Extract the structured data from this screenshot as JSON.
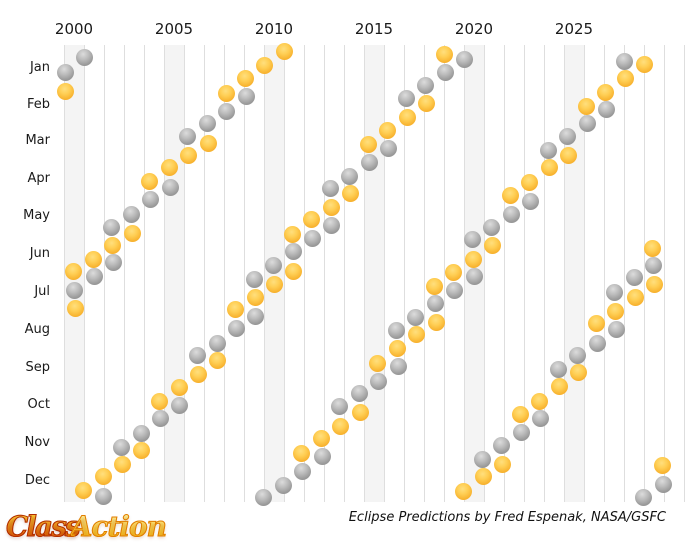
{
  "chart_data": {
    "type": "scatter",
    "title": "",
    "x_axis": {
      "label": "",
      "tick_labels": [
        "2000",
        "2005",
        "2010",
        "2015",
        "2020",
        "2025"
      ],
      "tick_years": [
        2000,
        2005,
        2010,
        2015,
        2020,
        2025
      ],
      "year_range": [
        2000,
        2031
      ],
      "gridline_step_years": 1,
      "highlighted_year_bands": [
        2000,
        2005,
        2010,
        2015,
        2020,
        2025
      ]
    },
    "y_axis": {
      "label": "",
      "tick_labels": [
        "Jan",
        "Feb",
        "Mar",
        "Apr",
        "May",
        "Jun",
        "Jul",
        "Aug",
        "Sep",
        "Oct",
        "Nov",
        "Dec"
      ]
    },
    "legend": {
      "visible": false
    },
    "grid": "vertical-only",
    "series": [
      {
        "name": "lunar-eclipse",
        "color": "#9a9a9a",
        "dates": [
          "2000-01-21",
          "2000-07-16",
          "2001-01-09",
          "2001-07-05",
          "2001-12-30",
          "2002-05-26",
          "2002-06-24",
          "2002-11-20",
          "2003-05-16",
          "2003-11-09",
          "2004-05-04",
          "2004-10-28",
          "2005-04-24",
          "2005-10-17",
          "2006-03-14",
          "2006-09-07",
          "2007-03-03",
          "2007-08-28",
          "2008-02-21",
          "2008-08-16",
          "2009-02-09",
          "2009-07-07",
          "2009-08-06",
          "2009-12-31",
          "2010-06-26",
          "2010-12-21",
          "2011-06-15",
          "2011-12-10",
          "2012-06-04",
          "2012-11-28",
          "2013-04-25",
          "2013-05-25",
          "2013-10-18",
          "2014-04-15",
          "2014-10-08",
          "2015-04-04",
          "2015-09-28",
          "2016-03-23",
          "2016-08-18",
          "2016-09-16",
          "2017-02-11",
          "2017-08-07",
          "2018-01-31",
          "2018-07-27",
          "2019-01-21",
          "2019-07-16",
          "2020-01-10",
          "2020-06-05",
          "2020-07-05",
          "2020-11-30",
          "2021-05-26",
          "2021-11-19",
          "2022-05-16",
          "2022-11-08",
          "2023-05-05",
          "2023-10-28",
          "2024-03-25",
          "2024-09-18",
          "2025-03-14",
          "2025-09-07",
          "2026-03-03",
          "2026-08-28",
          "2027-02-20",
          "2027-07-18",
          "2027-08-17",
          "2028-01-12",
          "2028-07-06",
          "2028-12-31",
          "2029-06-26",
          "2029-12-20"
        ]
      },
      {
        "name": "solar-eclipse",
        "color": "#f7b02c",
        "dates": [
          "2000-02-05",
          "2000-07-01",
          "2000-07-31",
          "2000-12-25",
          "2001-06-21",
          "2001-12-14",
          "2002-06-10",
          "2002-12-04",
          "2003-05-31",
          "2003-11-23",
          "2004-04-19",
          "2004-10-14",
          "2005-04-08",
          "2005-10-03",
          "2006-03-29",
          "2006-09-22",
          "2007-03-19",
          "2007-09-11",
          "2008-02-07",
          "2008-08-01",
          "2009-01-26",
          "2009-07-22",
          "2010-01-15",
          "2010-07-11",
          "2011-01-04",
          "2011-06-01",
          "2011-07-01",
          "2011-11-25",
          "2012-05-20",
          "2012-11-13",
          "2013-05-10",
          "2013-11-03",
          "2014-04-29",
          "2014-10-23",
          "2015-03-20",
          "2015-09-13",
          "2016-03-09",
          "2016-09-01",
          "2017-02-26",
          "2017-08-21",
          "2018-02-15",
          "2018-07-13",
          "2018-08-11",
          "2019-01-06",
          "2019-07-02",
          "2019-12-26",
          "2020-06-21",
          "2020-12-14",
          "2021-06-10",
          "2021-12-04",
          "2022-04-30",
          "2022-10-25",
          "2023-04-20",
          "2023-10-14",
          "2024-04-08",
          "2024-10-02",
          "2025-03-29",
          "2025-09-21",
          "2026-02-17",
          "2026-08-12",
          "2027-02-06",
          "2027-08-02",
          "2028-01-26",
          "2028-07-22",
          "2029-01-14",
          "2029-06-12",
          "2029-07-11",
          "2029-12-05"
        ]
      }
    ],
    "annotation": "Eclipse Predictions by Fred Espenak, NASA/GSFC"
  },
  "credit": "Eclipse Predictions by Fred Espenak, NASA/GSFC",
  "logo": {
    "text1": "Class",
    "text2": "Action"
  },
  "colors": {
    "band": "#f4f4f4",
    "gridline": "#dedede",
    "solar_center": "#ffcf55",
    "solar_edge": "#efa51e",
    "lunar_center": "#c9c9c9",
    "lunar_edge": "#8a8a8a",
    "text": "#1a1a1a"
  }
}
